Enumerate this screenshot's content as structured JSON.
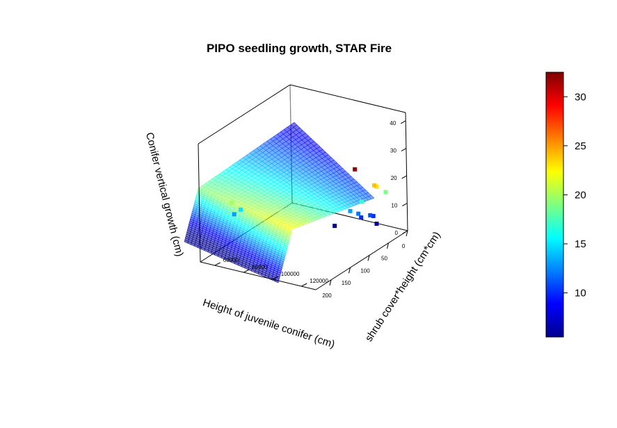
{
  "chart_data": {
    "type": "scatter",
    "title": "PIPO seedling growth, STAR Fire",
    "xlabel": "Height of juvenile conifer (cm)",
    "ylabel": "shrub cover*height (cm*cm)",
    "zlabel": "Conifer vertical growth (cm)",
    "x_ticks": [
      "0",
      "50",
      "100",
      "150",
      "200"
    ],
    "y_ticks": [
      "60000",
      "80000",
      "100000",
      "120000"
    ],
    "z_ticks": [
      "0",
      "10",
      "20",
      "30",
      "40"
    ],
    "colorbar_ticks": [
      "10",
      "15",
      "20",
      "25",
      "30"
    ],
    "colorbar_range": [
      5.5,
      32.5
    ],
    "xlim": [
      0,
      240
    ],
    "ylim": [
      50000,
      130000
    ],
    "zlim": [
      0,
      43
    ],
    "surface": {
      "type": "plane",
      "z_min": 5.5,
      "z_max": 32.5
    },
    "points": [
      {
        "x": 62,
        "y": 96000,
        "z": 3
      },
      {
        "x": 50,
        "y": 122000,
        "z": 6
      },
      {
        "x": 62,
        "y": 123000,
        "z": 10
      },
      {
        "x": 70,
        "y": 123000,
        "z": 11
      },
      {
        "x": 75,
        "y": 118000,
        "z": 10
      },
      {
        "x": 82,
        "y": 118000,
        "z": 12
      },
      {
        "x": 88,
        "y": 114000,
        "z": 13
      },
      {
        "x": 84,
        "y": 121000,
        "z": 17
      },
      {
        "x": 55,
        "y": 130000,
        "z": 19
      },
      {
        "x": 78,
        "y": 130000,
        "z": 23
      },
      {
        "x": 84,
        "y": 130000,
        "z": 24
      },
      {
        "x": 115,
        "y": 125000,
        "z": 32
      },
      {
        "x": 180,
        "y": 58000,
        "z": 13
      },
      {
        "x": 178,
        "y": 62000,
        "z": 15
      },
      {
        "x": 204,
        "y": 63000,
        "z": 20
      }
    ]
  }
}
